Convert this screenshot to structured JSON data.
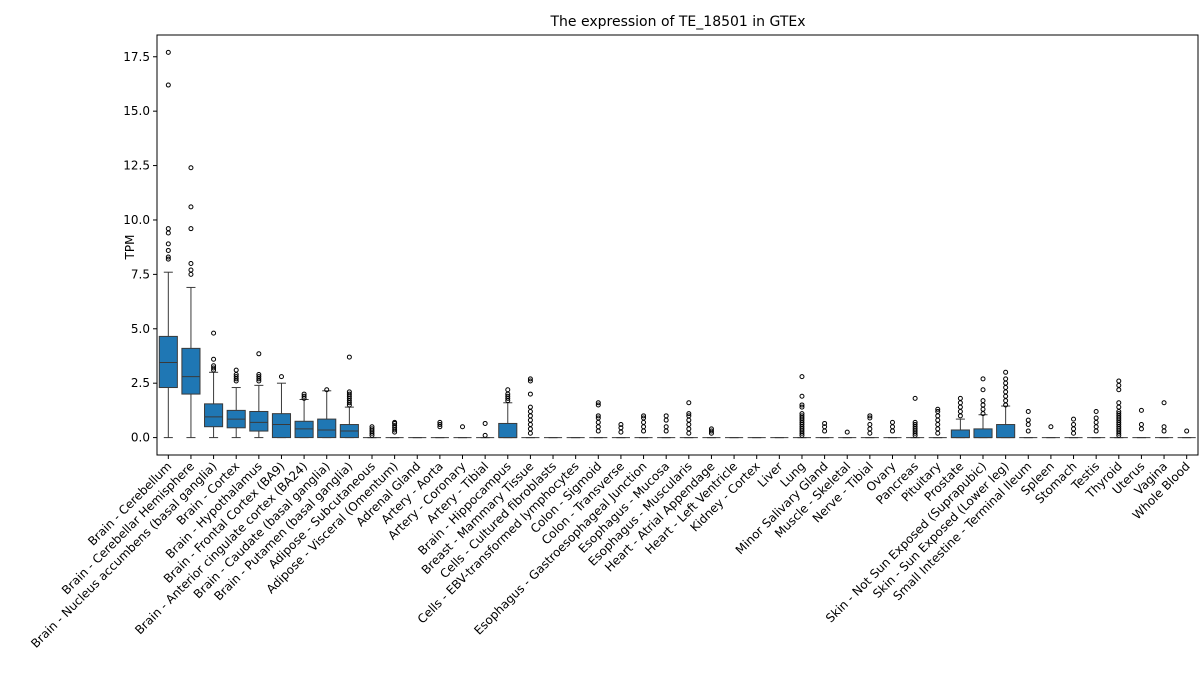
{
  "chart_data": {
    "type": "box",
    "title": "The expression of TE_18501 in GTEx",
    "xlabel": "",
    "ylabel": "TPM",
    "ylim": [
      -0.8,
      18.5
    ],
    "yticks": [
      "0.0",
      "2.5",
      "5.0",
      "7.5",
      "10.0",
      "12.5",
      "15.0",
      "17.5"
    ],
    "colors": {
      "box": "#1f77b4",
      "line": "#3a3a3a",
      "axis": "#000000"
    },
    "categories": [
      "Brain - Cerebellum",
      "Brain - Cerebellar Hemisphere",
      "Brain - Nucleus accumbens (basal ganglia)",
      "Brain - Cortex",
      "Brain - Hypothalamus",
      "Brain - Frontal Cortex (BA9)",
      "Brain - Anterior cingulate cortex (BA24)",
      "Brain - Caudate (basal ganglia)",
      "Brain - Putamen (basal ganglia)",
      "Adipose - Subcutaneous",
      "Adipose - Visceral (Omentum)",
      "Adrenal Gland",
      "Artery - Aorta",
      "Artery - Coronary",
      "Artery - Tibial",
      "Brain - Hippocampus",
      "Breast - Mammary Tissue",
      "Cells - Cultured fibroblasts",
      "Cells - EBV-transformed lymphocytes",
      "Colon - Sigmoid",
      "Colon - Transverse",
      "Esophagus - Gastroesophageal Junction",
      "Esophagus - Mucosa",
      "Esophagus - Muscularis",
      "Heart - Atrial Appendage",
      "Heart - Left Ventricle",
      "Kidney - Cortex",
      "Liver",
      "Lung",
      "Minor Salivary Gland",
      "Muscle - Skeletal",
      "Nerve - Tibial",
      "Ovary",
      "Pancreas",
      "Pituitary",
      "Prostate",
      "Skin - Not Sun Exposed (Suprapubic)",
      "Skin - Sun Exposed (Lower leg)",
      "Small Intestine - Terminal Ileum",
      "Spleen",
      "Stomach",
      "Testis",
      "Thyroid",
      "Uterus",
      "Vagina",
      "Whole Blood"
    ],
    "boxes": [
      {
        "q1": 2.3,
        "median": 3.45,
        "q3": 4.65,
        "whislo": 0.0,
        "whishi": 7.6,
        "fliers": [
          8.2,
          8.3,
          8.6,
          8.9,
          9.4,
          9.6,
          16.2,
          17.7
        ]
      },
      {
        "q1": 2.0,
        "median": 2.8,
        "q3": 4.1,
        "whislo": 0.0,
        "whishi": 6.9,
        "fliers": [
          7.5,
          7.7,
          8.0,
          9.6,
          10.6,
          12.4
        ]
      },
      {
        "q1": 0.5,
        "median": 0.95,
        "q3": 1.55,
        "whislo": 0.0,
        "whishi": 3.0,
        "fliers": [
          3.1,
          3.2,
          3.3,
          3.6,
          4.8
        ]
      },
      {
        "q1": 0.45,
        "median": 0.85,
        "q3": 1.25,
        "whislo": 0.0,
        "whishi": 2.3,
        "fliers": [
          2.6,
          2.7,
          2.8,
          2.9,
          3.1
        ]
      },
      {
        "q1": 0.3,
        "median": 0.7,
        "q3": 1.2,
        "whislo": 0.0,
        "whishi": 2.4,
        "fliers": [
          2.6,
          2.7,
          2.8,
          2.9,
          3.85
        ]
      },
      {
        "q1": 0.0,
        "median": 0.6,
        "q3": 1.1,
        "whislo": 0.0,
        "whishi": 2.5,
        "fliers": [
          2.8
        ]
      },
      {
        "q1": 0.0,
        "median": 0.4,
        "q3": 0.75,
        "whislo": 0.0,
        "whishi": 1.75,
        "fliers": [
          1.8,
          1.9,
          2.0
        ]
      },
      {
        "q1": 0.0,
        "median": 0.35,
        "q3": 0.85,
        "whislo": 0.0,
        "whishi": 2.15,
        "fliers": [
          2.2
        ]
      },
      {
        "q1": 0.0,
        "median": 0.3,
        "q3": 0.6,
        "whislo": 0.0,
        "whishi": 1.4,
        "fliers": [
          1.5,
          1.6,
          1.7,
          1.8,
          1.9,
          2.0,
          2.1,
          3.7
        ]
      },
      {
        "q1": 0.0,
        "median": 0.0,
        "q3": 0.0,
        "whislo": 0.0,
        "whishi": 0.0,
        "fliers": [
          0.1,
          0.2,
          0.3,
          0.4,
          0.5
        ]
      },
      {
        "q1": 0.0,
        "median": 0.0,
        "q3": 0.0,
        "whislo": 0.0,
        "whishi": 0.0,
        "fliers": [
          0.25,
          0.35,
          0.45,
          0.55,
          0.65,
          0.7
        ]
      },
      {
        "q1": 0.0,
        "median": 0.0,
        "q3": 0.0,
        "whislo": 0.0,
        "whishi": 0.0,
        "fliers": []
      },
      {
        "q1": 0.0,
        "median": 0.0,
        "q3": 0.0,
        "whislo": 0.0,
        "whishi": 0.0,
        "fliers": [
          0.5,
          0.6,
          0.7
        ]
      },
      {
        "q1": 0.0,
        "median": 0.0,
        "q3": 0.0,
        "whislo": 0.0,
        "whishi": 0.0,
        "fliers": [
          0.5
        ]
      },
      {
        "q1": 0.0,
        "median": 0.0,
        "q3": 0.0,
        "whislo": 0.0,
        "whishi": 0.0,
        "fliers": [
          0.1,
          0.65
        ]
      },
      {
        "q1": 0.0,
        "median": 0.0,
        "q3": 0.65,
        "whislo": 0.0,
        "whishi": 1.6,
        "fliers": [
          1.7,
          1.8,
          1.9,
          2.0,
          2.2
        ]
      },
      {
        "q1": 0.0,
        "median": 0.0,
        "q3": 0.0,
        "whislo": 0.0,
        "whishi": 0.0,
        "fliers": [
          0.2,
          0.4,
          0.6,
          0.8,
          1.0,
          1.2,
          1.4,
          2.0,
          2.6,
          2.7
        ]
      },
      {
        "q1": 0.0,
        "median": 0.0,
        "q3": 0.0,
        "whislo": 0.0,
        "whishi": 0.0,
        "fliers": []
      },
      {
        "q1": 0.0,
        "median": 0.0,
        "q3": 0.0,
        "whislo": 0.0,
        "whishi": 0.0,
        "fliers": []
      },
      {
        "q1": 0.0,
        "median": 0.0,
        "q3": 0.0,
        "whislo": 0.0,
        "whishi": 0.0,
        "fliers": [
          0.3,
          0.5,
          0.7,
          0.9,
          1.0,
          1.5,
          1.6
        ]
      },
      {
        "q1": 0.0,
        "median": 0.0,
        "q3": 0.0,
        "whislo": 0.0,
        "whishi": 0.0,
        "fliers": [
          0.25,
          0.45,
          0.6
        ]
      },
      {
        "q1": 0.0,
        "median": 0.0,
        "q3": 0.0,
        "whislo": 0.0,
        "whishi": 0.0,
        "fliers": [
          0.3,
          0.5,
          0.7,
          0.9,
          1.0
        ]
      },
      {
        "q1": 0.0,
        "median": 0.0,
        "q3": 0.0,
        "whislo": 0.0,
        "whishi": 0.0,
        "fliers": [
          0.3,
          0.5,
          0.8,
          1.0
        ]
      },
      {
        "q1": 0.0,
        "median": 0.0,
        "q3": 0.0,
        "whislo": 0.0,
        "whishi": 0.0,
        "fliers": [
          0.2,
          0.4,
          0.6,
          0.8,
          1.0,
          1.1,
          1.6
        ]
      },
      {
        "q1": 0.0,
        "median": 0.0,
        "q3": 0.0,
        "whislo": 0.0,
        "whishi": 0.0,
        "fliers": [
          0.2,
          0.3,
          0.4
        ]
      },
      {
        "q1": 0.0,
        "median": 0.0,
        "q3": 0.0,
        "whislo": 0.0,
        "whishi": 0.0,
        "fliers": []
      },
      {
        "q1": 0.0,
        "median": 0.0,
        "q3": 0.0,
        "whislo": 0.0,
        "whishi": 0.0,
        "fliers": []
      },
      {
        "q1": 0.0,
        "median": 0.0,
        "q3": 0.0,
        "whislo": 0.0,
        "whishi": 0.0,
        "fliers": []
      },
      {
        "q1": 0.0,
        "median": 0.0,
        "q3": 0.0,
        "whislo": 0.0,
        "whishi": 0.0,
        "fliers": [
          0.1,
          0.2,
          0.3,
          0.4,
          0.5,
          0.6,
          0.7,
          0.8,
          0.9,
          1.0,
          1.1,
          1.4,
          1.5,
          1.9,
          2.8
        ]
      },
      {
        "q1": 0.0,
        "median": 0.0,
        "q3": 0.0,
        "whislo": 0.0,
        "whishi": 0.0,
        "fliers": [
          0.3,
          0.5,
          0.65
        ]
      },
      {
        "q1": 0.0,
        "median": 0.0,
        "q3": 0.0,
        "whislo": 0.0,
        "whishi": 0.0,
        "fliers": [
          0.25
        ]
      },
      {
        "q1": 0.0,
        "median": 0.0,
        "q3": 0.0,
        "whislo": 0.0,
        "whishi": 0.0,
        "fliers": [
          0.2,
          0.4,
          0.6,
          0.9,
          1.0
        ]
      },
      {
        "q1": 0.0,
        "median": 0.0,
        "q3": 0.0,
        "whislo": 0.0,
        "whishi": 0.0,
        "fliers": [
          0.3,
          0.5,
          0.7
        ]
      },
      {
        "q1": 0.0,
        "median": 0.0,
        "q3": 0.0,
        "whislo": 0.0,
        "whishi": 0.0,
        "fliers": [
          0.1,
          0.2,
          0.3,
          0.4,
          0.5,
          0.6,
          0.7,
          1.8
        ]
      },
      {
        "q1": 0.0,
        "median": 0.0,
        "q3": 0.0,
        "whislo": 0.0,
        "whishi": 0.0,
        "fliers": [
          0.2,
          0.4,
          0.6,
          0.8,
          1.0,
          1.2,
          1.3
        ]
      },
      {
        "q1": 0.0,
        "median": 0.0,
        "q3": 0.35,
        "whislo": 0.0,
        "whishi": 0.85,
        "fliers": [
          1.0,
          1.2,
          1.4,
          1.6,
          1.8
        ]
      },
      {
        "q1": 0.0,
        "median": 0.0,
        "q3": 0.4,
        "whislo": 0.0,
        "whishi": 1.05,
        "fliers": [
          1.1,
          1.3,
          1.5,
          1.7,
          2.2,
          2.7
        ]
      },
      {
        "q1": 0.0,
        "median": 0.0,
        "q3": 0.6,
        "whislo": 0.0,
        "whishi": 1.45,
        "fliers": [
          1.5,
          1.7,
          1.9,
          2.1,
          2.3,
          2.5,
          2.7,
          3.0
        ]
      },
      {
        "q1": 0.0,
        "median": 0.0,
        "q3": 0.0,
        "whislo": 0.0,
        "whishi": 0.0,
        "fliers": [
          0.3,
          0.6,
          0.8,
          1.2
        ]
      },
      {
        "q1": 0.0,
        "median": 0.0,
        "q3": 0.0,
        "whislo": 0.0,
        "whishi": 0.0,
        "fliers": [
          0.5
        ]
      },
      {
        "q1": 0.0,
        "median": 0.0,
        "q3": 0.0,
        "whislo": 0.0,
        "whishi": 0.0,
        "fliers": [
          0.2,
          0.4,
          0.6,
          0.85
        ]
      },
      {
        "q1": 0.0,
        "median": 0.0,
        "q3": 0.0,
        "whislo": 0.0,
        "whishi": 0.0,
        "fliers": [
          0.3,
          0.5,
          0.7,
          0.9,
          1.2
        ]
      },
      {
        "q1": 0.0,
        "median": 0.0,
        "q3": 0.0,
        "whislo": 0.0,
        "whishi": 0.0,
        "fliers": [
          0.1,
          0.2,
          0.3,
          0.4,
          0.5,
          0.6,
          0.7,
          0.8,
          0.9,
          1.0,
          1.1,
          1.2,
          1.4,
          1.6,
          2.2,
          2.4,
          2.6
        ]
      },
      {
        "q1": 0.0,
        "median": 0.0,
        "q3": 0.0,
        "whislo": 0.0,
        "whishi": 0.0,
        "fliers": [
          0.4,
          0.6,
          1.25
        ]
      },
      {
        "q1": 0.0,
        "median": 0.0,
        "q3": 0.0,
        "whislo": 0.0,
        "whishi": 0.0,
        "fliers": [
          0.3,
          0.5,
          1.6
        ]
      },
      {
        "q1": 0.0,
        "median": 0.0,
        "q3": 0.0,
        "whislo": 0.0,
        "whishi": 0.0,
        "fliers": [
          0.3
        ]
      }
    ]
  }
}
